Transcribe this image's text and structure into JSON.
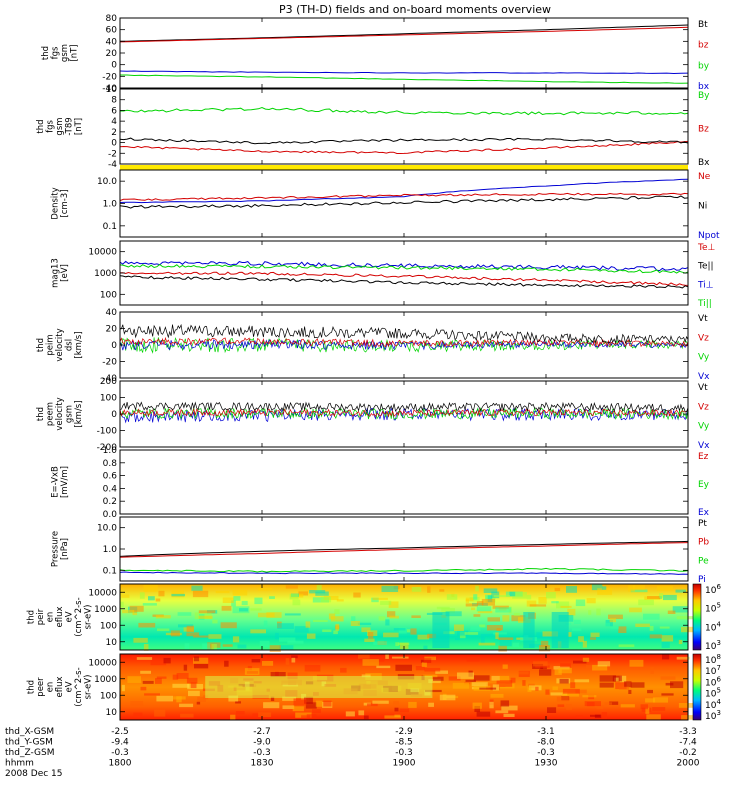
{
  "title": "P3 (TH-D) fields and on-board moments overview",
  "colors": {
    "black": "#000000",
    "red": "#d40000",
    "green": "#00d400",
    "blue": "#0000d4",
    "yellow": "#ffea00"
  },
  "panels": [
    {
      "id": "fgs-gsm",
      "ylabel": [
        "thd",
        "fgs",
        "gsm",
        "[nT]"
      ],
      "scale": "linear",
      "ticks": [
        "80",
        "60",
        "40",
        "20",
        "0",
        "-20",
        "-40"
      ],
      "legend": [
        {
          "text": "Bt",
          "color": "black"
        },
        {
          "text": "bz",
          "color": "red"
        },
        {
          "text": "by",
          "color": "green"
        },
        {
          "text": "bx",
          "color": "blue"
        }
      ]
    },
    {
      "id": "fgs-gsm-t89",
      "ylabel": [
        "thd",
        "fgs",
        "gsm",
        "-T89",
        "[nT]"
      ],
      "scale": "linear",
      "ticks": [
        "10",
        "8",
        "6",
        "4",
        "2",
        "0",
        "-2",
        "-4"
      ],
      "legend": [
        {
          "text": "By",
          "color": "green"
        },
        {
          "text": "Bz",
          "color": "red"
        },
        {
          "text": "Bx",
          "color": "black"
        }
      ]
    },
    {
      "id": "density",
      "ylabel": [
        "Density",
        "[cm-3]"
      ],
      "scale": "log",
      "ticks": [
        "10.0",
        "1.0",
        "0.1"
      ],
      "legend": [
        {
          "text": "Ne",
          "color": "red"
        },
        {
          "text": "Ni",
          "color": "black"
        },
        {
          "text": "Npot",
          "color": "blue"
        }
      ]
    },
    {
      "id": "temperature",
      "ylabel": [
        "mag13",
        "[eV]"
      ],
      "scale": "log",
      "ticks": [
        "10000",
        "1000",
        "100"
      ],
      "legend": [
        {
          "text": "Te⊥",
          "color": "red"
        },
        {
          "text": "Te||",
          "color": "black"
        },
        {
          "text": "Ti⊥",
          "color": "blue"
        },
        {
          "text": "Ti||",
          "color": "green"
        }
      ]
    },
    {
      "id": "peim-velocity",
      "ylabel": [
        "thd",
        "peim",
        "velocity",
        "dsl",
        "[km/s]"
      ],
      "scale": "linear",
      "ticks": [
        "40",
        "20",
        "0",
        "-20",
        "-40"
      ],
      "legend": [
        {
          "text": "Vt",
          "color": "black"
        },
        {
          "text": "Vz",
          "color": "red"
        },
        {
          "text": "Vy",
          "color": "green"
        },
        {
          "text": "Vx",
          "color": "blue"
        }
      ]
    },
    {
      "id": "peem-velocity",
      "ylabel": [
        "thd",
        "peem",
        "velocity",
        "gsm",
        "[km/s]"
      ],
      "scale": "linear",
      "ticks": [
        "200",
        "100",
        "0",
        "-100",
        "-200"
      ],
      "legend": [
        {
          "text": "Vt",
          "color": "black"
        },
        {
          "text": "Vz",
          "color": "red"
        },
        {
          "text": "Vy",
          "color": "green"
        },
        {
          "text": "Vx",
          "color": "blue"
        }
      ]
    },
    {
      "id": "efield",
      "ylabel": [
        "E=-VxB",
        "[mV/m]"
      ],
      "scale": "linear",
      "ticks": [
        "1.0",
        "0.8",
        "0.6",
        "0.4",
        "0.2",
        "0.0"
      ],
      "legend": [
        {
          "text": "Ez",
          "color": "red"
        },
        {
          "text": "Ey",
          "color": "green"
        },
        {
          "text": "Ex",
          "color": "blue"
        }
      ]
    },
    {
      "id": "pressure",
      "ylabel": [
        "Pressure",
        "[nPa]"
      ],
      "scale": "log",
      "ticks": [
        "10.0",
        "1.0",
        "0.1"
      ],
      "legend": [
        {
          "text": "Pt",
          "color": "black"
        },
        {
          "text": "Pb",
          "color": "red"
        },
        {
          "text": "Pe",
          "color": "green"
        },
        {
          "text": "Pi",
          "color": "blue"
        }
      ]
    },
    {
      "id": "peir-spectrogram",
      "ylabel": [
        "thd",
        "peir",
        "en",
        "eflux",
        "eV",
        "(cm^2-s-",
        "sr-eV)"
      ],
      "scale": "log",
      "ticks": [
        "10000",
        "1000",
        "100",
        "10"
      ],
      "colorbar": [
        "10^6",
        "10^5",
        "10^4",
        "10^3"
      ]
    },
    {
      "id": "peer-spectrogram",
      "ylabel": [
        "thd",
        "peer",
        "en",
        "eflux",
        "eV",
        "(cm^2-s-",
        "sr-eV)"
      ],
      "scale": "log",
      "ticks": [
        "10000",
        "1000",
        "100",
        "10"
      ],
      "colorbar": [
        "10^8",
        "10^7",
        "10^6",
        "10^5",
        "10^4",
        "10^3"
      ]
    }
  ],
  "xaxis": {
    "rows": [
      {
        "label": "thd_X-GSM",
        "values": [
          "-2.5",
          "-2.7",
          "-2.9",
          "-3.1",
          "-3.3"
        ]
      },
      {
        "label": "thd_Y-GSM",
        "values": [
          "-9.4",
          "-9.0",
          "-8.5",
          "-8.0",
          "-7.4"
        ]
      },
      {
        "label": "thd_Z-GSM",
        "values": [
          "-0.3",
          "-0.3",
          "-0.3",
          "-0.3",
          "-0.2"
        ]
      },
      {
        "label": "hhmm",
        "values": [
          "1800",
          "1830",
          "1900",
          "1930",
          "2000"
        ]
      }
    ],
    "date": "2008 Dec 15"
  },
  "chart_data": {
    "type": "line",
    "title": "P3 (TH-D) fields and on-board moments overview",
    "x_label": "hhmm",
    "x": [
      "1800",
      "1830",
      "1900",
      "1930",
      "2000"
    ],
    "series": [
      {
        "name": "Bt",
        "panel": "fgs-gsm",
        "values": [
          40,
          46,
          53,
          60,
          68
        ]
      },
      {
        "name": "bz",
        "panel": "fgs-gsm",
        "values": [
          39,
          45,
          51,
          57,
          64
        ]
      },
      {
        "name": "by",
        "panel": "fgs-gsm",
        "values": [
          -18,
          -21,
          -25,
          -29,
          -32
        ]
      },
      {
        "name": "bx",
        "panel": "fgs-gsm",
        "values": [
          -11,
          -13,
          -14,
          -14,
          -15
        ]
      },
      {
        "name": "By",
        "panel": "fgs-gsm-t89",
        "values": [
          6.2,
          6.8,
          6.0,
          5.8,
          5.9
        ]
      },
      {
        "name": "Bz",
        "panel": "fgs-gsm-t89",
        "values": [
          -1.3,
          -2.3,
          -2.6,
          -1.6,
          -0.3
        ]
      },
      {
        "name": "Bx",
        "panel": "fgs-gsm-t89",
        "values": [
          0.4,
          -0.5,
          0.1,
          0.3,
          -0.4
        ]
      },
      {
        "name": "Ne",
        "panel": "density",
        "values": [
          1.4,
          1.8,
          2.3,
          2.6,
          2.6
        ]
      },
      {
        "name": "Ni",
        "panel": "density",
        "values": [
          0.7,
          0.8,
          1.1,
          1.5,
          2.0
        ]
      },
      {
        "name": "Npot",
        "panel": "density",
        "values": [
          1.1,
          1.3,
          2.0,
          6.0,
          12.0
        ]
      },
      {
        "name": "Te⊥",
        "panel": "temperature",
        "values": [
          1000,
          950,
          700,
          450,
          280
        ]
      },
      {
        "name": "Te||",
        "panel": "temperature",
        "values": [
          650,
          500,
          350,
          270,
          220
        ]
      },
      {
        "name": "Ti⊥",
        "panel": "temperature",
        "values": [
          3000,
          2800,
          2200,
          1900,
          1500
        ]
      },
      {
        "name": "Ti||",
        "panel": "temperature",
        "values": [
          2200,
          2000,
          1800,
          1500,
          1100
        ]
      },
      {
        "name": "Vt",
        "panel": "peim-velocity",
        "values": [
          20,
          18,
          16,
          10,
          7
        ]
      },
      {
        "name": "Vz",
        "panel": "peim-velocity",
        "values": [
          5,
          5,
          2,
          3,
          2
        ]
      },
      {
        "name": "Vy",
        "panel": "peim-velocity",
        "values": [
          0,
          0,
          -2,
          0,
          1
        ]
      },
      {
        "name": "Vx",
        "panel": "peim-velocity",
        "values": [
          0,
          1,
          -1,
          1,
          0
        ]
      },
      {
        "name": "Vt",
        "panel": "peem-velocity",
        "values": [
          55,
          50,
          45,
          50,
          40
        ]
      },
      {
        "name": "Vz",
        "panel": "peem-velocity",
        "values": [
          10,
          10,
          5,
          10,
          5
        ]
      },
      {
        "name": "Vy",
        "panel": "peem-velocity",
        "values": [
          5,
          5,
          0,
          5,
          0
        ]
      },
      {
        "name": "Vx",
        "panel": "peem-velocity",
        "values": [
          -20,
          -10,
          0,
          -5,
          0
        ]
      },
      {
        "name": "Pt",
        "panel": "pressure",
        "values": [
          0.6,
          1.0,
          1.4,
          2.0,
          2.7
        ]
      },
      {
        "name": "Pb",
        "panel": "pressure",
        "values": [
          0.55,
          0.8,
          1.2,
          1.7,
          2.4
        ]
      },
      {
        "name": "Pe",
        "panel": "pressure",
        "values": [
          0.15,
          0.13,
          0.14,
          0.17,
          0.14
        ]
      },
      {
        "name": "Pi",
        "panel": "pressure",
        "values": [
          0.12,
          0.11,
          0.11,
          0.11,
          0.1
        ]
      }
    ]
  }
}
